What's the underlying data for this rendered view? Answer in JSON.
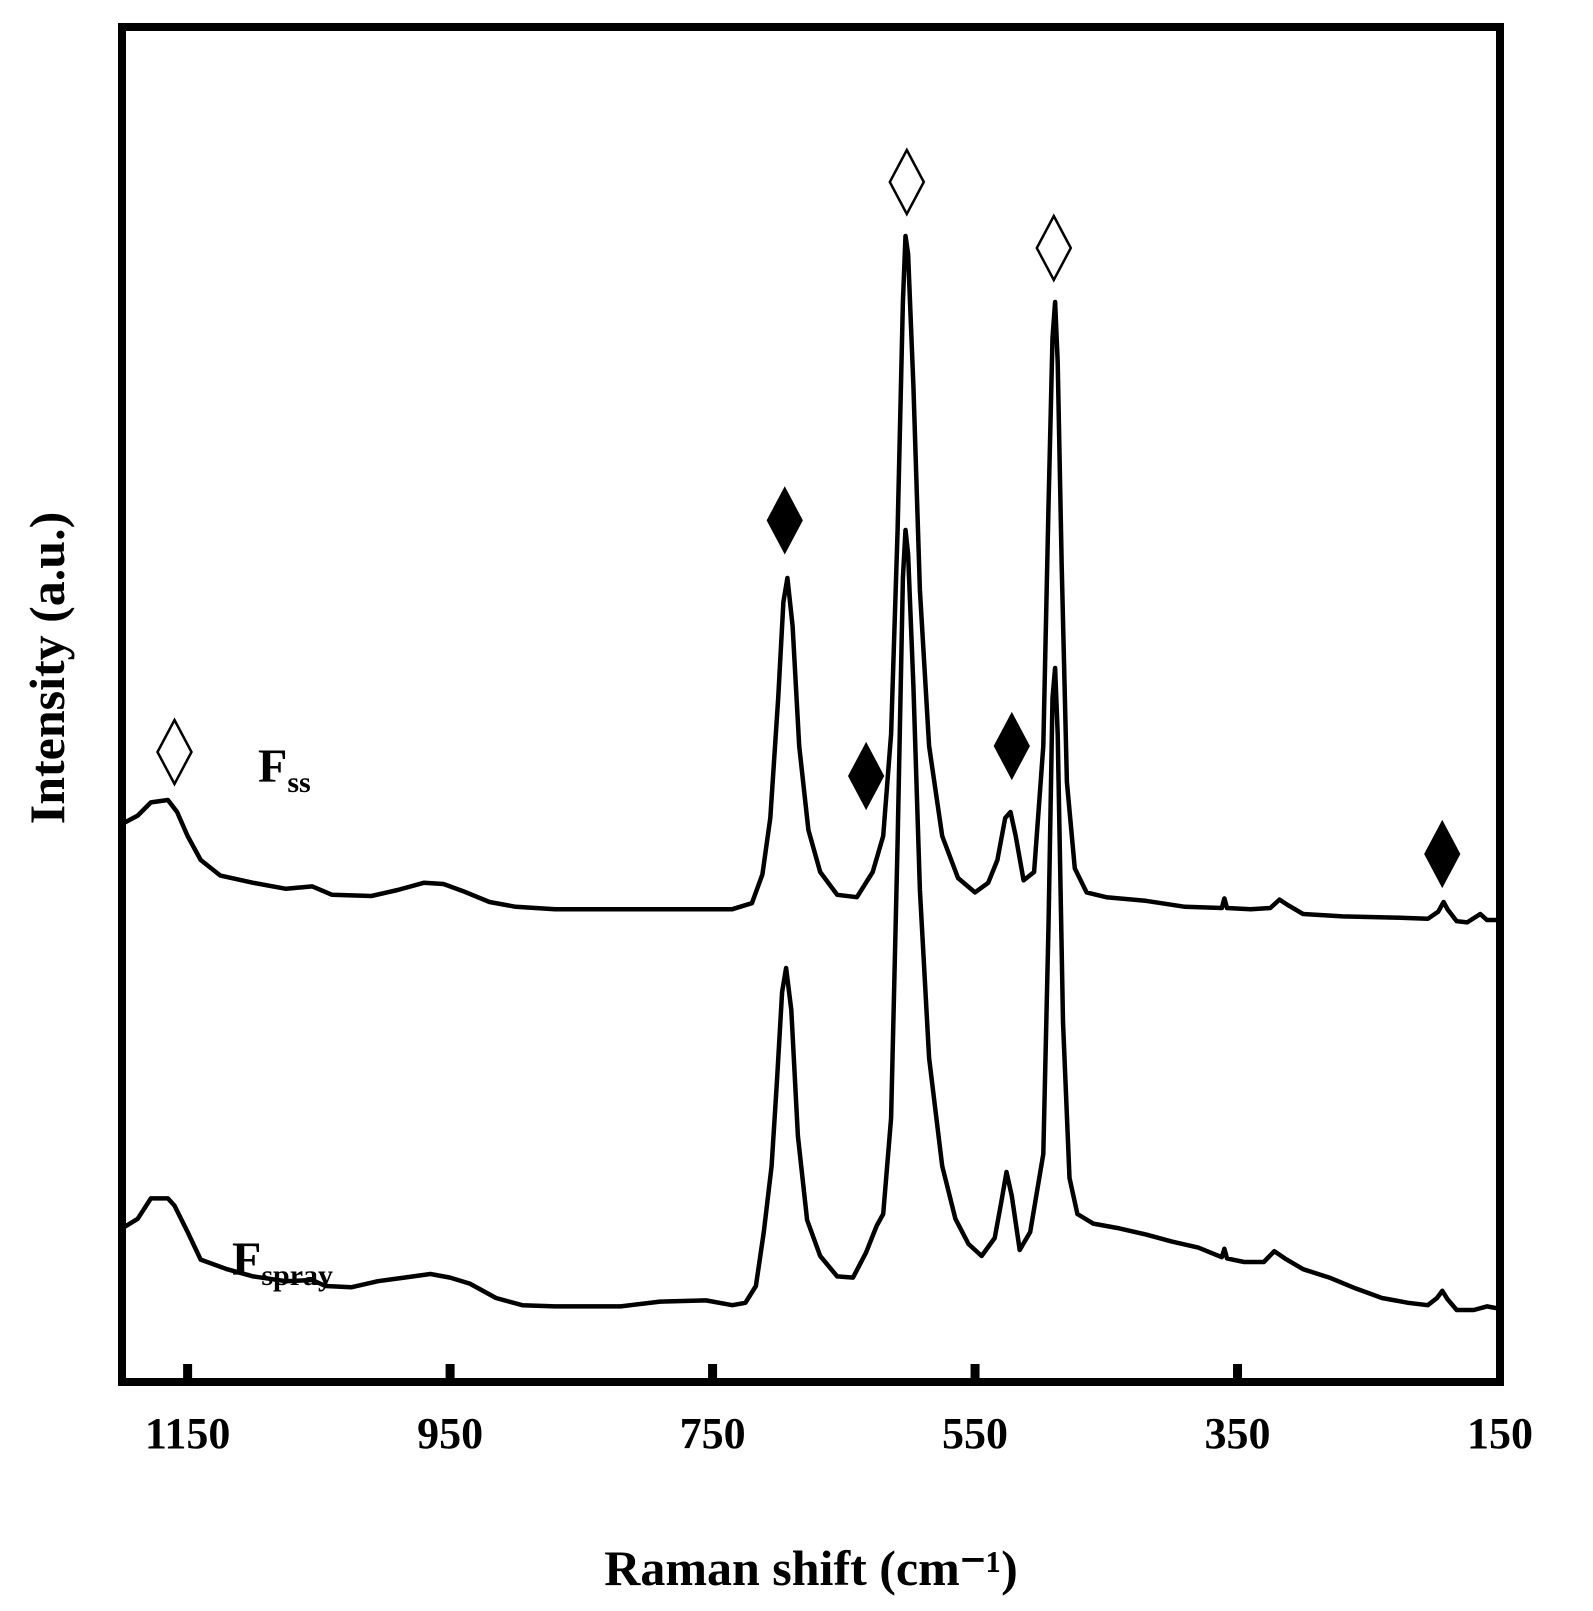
{
  "chart_data": {
    "type": "line",
    "title": "",
    "xlabel": "Raman shift (cm⁻¹)",
    "ylabel": "Intensity (a.u.)",
    "xlim": [
      1200,
      150
    ],
    "x_reversed": true,
    "ylim": [
      0,
      100
    ],
    "xticks": [
      1150,
      950,
      750,
      550,
      350,
      150
    ],
    "grid": false,
    "legend": "none",
    "series": [
      {
        "name": "F",
        "subscript": "ss",
        "baseline": 41,
        "points": [
          [
            1200,
            41.5
          ],
          [
            1188,
            42.2
          ],
          [
            1178,
            43.3
          ],
          [
            1165,
            43.5
          ],
          [
            1158,
            42.5
          ],
          [
            1150,
            40.5
          ],
          [
            1140,
            38.5
          ],
          [
            1125,
            37.2
          ],
          [
            1100,
            36.6
          ],
          [
            1075,
            36.1
          ],
          [
            1055,
            36.3
          ],
          [
            1040,
            35.6
          ],
          [
            1010,
            35.5
          ],
          [
            990,
            36.0
          ],
          [
            970,
            36.6
          ],
          [
            955,
            36.5
          ],
          [
            940,
            35.9
          ],
          [
            920,
            35.0
          ],
          [
            900,
            34.6
          ],
          [
            870,
            34.4
          ],
          [
            800,
            34.4
          ],
          [
            735,
            34.4
          ],
          [
            720,
            34.9
          ],
          [
            712,
            37.3
          ],
          [
            706,
            42.0
          ],
          [
            700,
            52.0
          ],
          [
            696,
            60.0
          ],
          [
            693,
            62.0
          ],
          [
            689,
            58.0
          ],
          [
            684,
            48.0
          ],
          [
            677,
            41.0
          ],
          [
            668,
            37.5
          ],
          [
            655,
            35.6
          ],
          [
            640,
            35.4
          ],
          [
            628,
            37.5
          ],
          [
            620,
            40.5
          ],
          [
            614,
            49.0
          ],
          [
            609,
            66.0
          ],
          [
            605,
            85.0
          ],
          [
            603,
            90.5
          ],
          [
            601,
            89.0
          ],
          [
            597,
            78.0
          ],
          [
            592,
            61.0
          ],
          [
            585,
            48.0
          ],
          [
            575,
            40.5
          ],
          [
            563,
            37.0
          ],
          [
            550,
            35.8
          ],
          [
            540,
            36.6
          ],
          [
            533,
            38.5
          ],
          [
            527,
            42.0
          ],
          [
            523,
            42.5
          ],
          [
            519,
            40.5
          ],
          [
            513,
            36.8
          ],
          [
            505,
            37.5
          ],
          [
            498,
            48.0
          ],
          [
            494,
            68.0
          ],
          [
            491,
            82.0
          ],
          [
            489,
            85.0
          ],
          [
            487,
            80.0
          ],
          [
            484,
            63.0
          ],
          [
            480,
            45.0
          ],
          [
            474,
            37.8
          ],
          [
            465,
            35.8
          ],
          [
            450,
            35.4
          ],
          [
            420,
            35.1
          ],
          [
            390,
            34.6
          ],
          [
            362,
            34.5
          ],
          [
            360,
            35.3
          ],
          [
            358,
            34.5
          ],
          [
            340,
            34.4
          ],
          [
            325,
            34.5
          ],
          [
            318,
            35.2
          ],
          [
            311,
            34.7
          ],
          [
            300,
            34.0
          ],
          [
            270,
            33.8
          ],
          [
            230,
            33.7
          ],
          [
            205,
            33.6
          ],
          [
            197,
            34.2
          ],
          [
            193,
            35.0
          ],
          [
            190,
            34.4
          ],
          [
            183,
            33.4
          ],
          [
            175,
            33.3
          ],
          [
            165,
            34.0
          ],
          [
            160,
            33.5
          ],
          [
            150,
            33.5
          ]
        ]
      },
      {
        "name": "F",
        "subscript": "spray",
        "baseline": 8,
        "points": [
          [
            1200,
            7.8
          ],
          [
            1188,
            8.6
          ],
          [
            1178,
            10.3
          ],
          [
            1165,
            10.3
          ],
          [
            1160,
            9.7
          ],
          [
            1150,
            7.5
          ],
          [
            1140,
            5.2
          ],
          [
            1120,
            4.4
          ],
          [
            1100,
            3.8
          ],
          [
            1075,
            3.4
          ],
          [
            1055,
            3.5
          ],
          [
            1045,
            3.0
          ],
          [
            1025,
            2.9
          ],
          [
            1005,
            3.4
          ],
          [
            985,
            3.7
          ],
          [
            965,
            4.0
          ],
          [
            950,
            3.7
          ],
          [
            935,
            3.2
          ],
          [
            915,
            2.0
          ],
          [
            895,
            1.4
          ],
          [
            870,
            1.3
          ],
          [
            820,
            1.3
          ],
          [
            790,
            1.7
          ],
          [
            755,
            1.8
          ],
          [
            735,
            1.4
          ],
          [
            725,
            1.6
          ],
          [
            717,
            3.0
          ],
          [
            711,
            7.5
          ],
          [
            705,
            13.0
          ],
          [
            701,
            20.0
          ],
          [
            697,
            27.5
          ],
          [
            694,
            29.5
          ],
          [
            690,
            26.0
          ],
          [
            685,
            15.5
          ],
          [
            678,
            8.5
          ],
          [
            668,
            5.5
          ],
          [
            655,
            3.8
          ],
          [
            643,
            3.7
          ],
          [
            633,
            5.8
          ],
          [
            625,
            8.0
          ],
          [
            620,
            9.0
          ],
          [
            614,
            17.0
          ],
          [
            609,
            40.0
          ],
          [
            605,
            62.0
          ],
          [
            603,
            66.0
          ],
          [
            601,
            64.0
          ],
          [
            597,
            53.0
          ],
          [
            592,
            36.0
          ],
          [
            585,
            22.0
          ],
          [
            575,
            13.0
          ],
          [
            565,
            8.6
          ],
          [
            555,
            6.5
          ],
          [
            545,
            5.5
          ],
          [
            535,
            7.0
          ],
          [
            530,
            10.0
          ],
          [
            526,
            12.5
          ],
          [
            522,
            10.5
          ],
          [
            516,
            6.0
          ],
          [
            508,
            7.5
          ],
          [
            498,
            14.0
          ],
          [
            494,
            33.0
          ],
          [
            491,
            52.0
          ],
          [
            489,
            54.5
          ],
          [
            487,
            49.0
          ],
          [
            483,
            25.0
          ],
          [
            478,
            12.0
          ],
          [
            472,
            9.0
          ],
          [
            460,
            8.2
          ],
          [
            440,
            7.8
          ],
          [
            420,
            7.3
          ],
          [
            400,
            6.7
          ],
          [
            380,
            6.2
          ],
          [
            362,
            5.4
          ],
          [
            360,
            6.1
          ],
          [
            358,
            5.3
          ],
          [
            345,
            5.0
          ],
          [
            330,
            5.0
          ],
          [
            322,
            5.9
          ],
          [
            314,
            5.3
          ],
          [
            300,
            4.4
          ],
          [
            280,
            3.7
          ],
          [
            260,
            2.8
          ],
          [
            240,
            2.0
          ],
          [
            220,
            1.6
          ],
          [
            205,
            1.4
          ],
          [
            198,
            2.0
          ],
          [
            194,
            2.6
          ],
          [
            190,
            1.9
          ],
          [
            183,
            1.0
          ],
          [
            170,
            1.0
          ],
          [
            160,
            1.3
          ],
          [
            150,
            1.1
          ]
        ]
      }
    ],
    "annotations": [
      {
        "marker": "open-diamond",
        "x": 1160,
        "y": 47.5
      },
      {
        "marker": "filled-diamond",
        "x": 695,
        "y": 66.8
      },
      {
        "marker": "filled-diamond",
        "x": 633,
        "y": 45.5
      },
      {
        "marker": "open-diamond",
        "x": 602,
        "y": 95.0
      },
      {
        "marker": "filled-diamond",
        "x": 522,
        "y": 48.0
      },
      {
        "marker": "open-diamond",
        "x": 490,
        "y": 89.5
      },
      {
        "marker": "filled-diamond",
        "x": 194,
        "y": 39.0
      }
    ],
    "colors": {
      "line": "#000000",
      "background": "#ffffff"
    }
  }
}
